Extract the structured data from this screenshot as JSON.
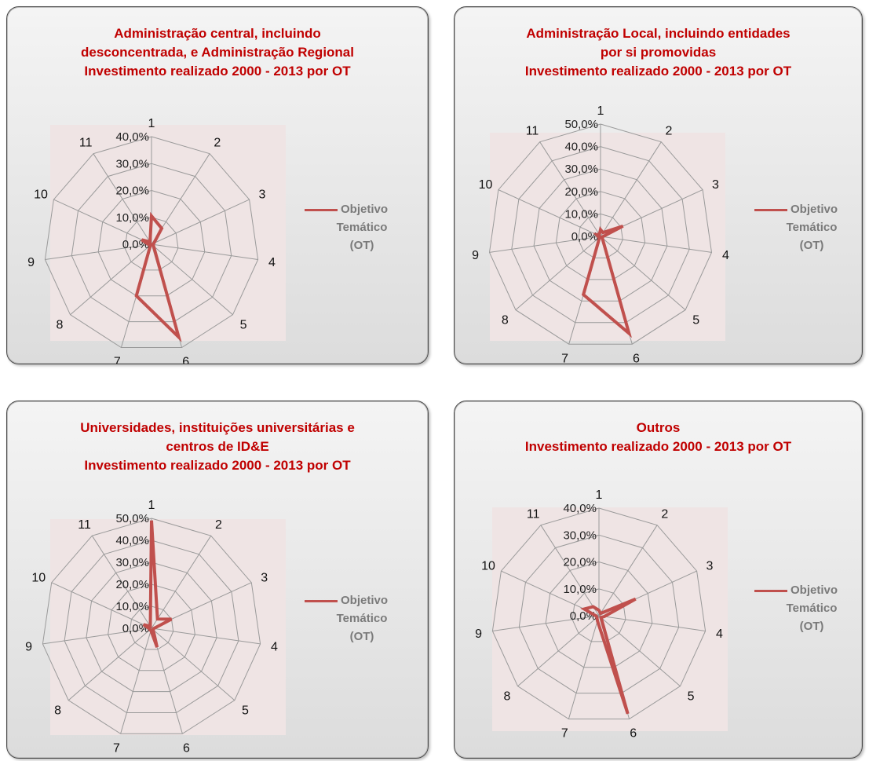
{
  "chart_data": [
    {
      "type": "radar",
      "title": [
        "Administração central, incluindo",
        "desconcentrada, e Administração Regional",
        "Investimento realizado 2000 - 2013 por OT"
      ],
      "categories": [
        "1",
        "2",
        "3",
        "4",
        "5",
        "6",
        "7",
        "8",
        "9",
        "10",
        "11"
      ],
      "axis_tick_labels": [
        "0,0%",
        "10,0%",
        "20,0%",
        "30,0%",
        "40,0%"
      ],
      "rmax": 40,
      "legend": [
        "Objetivo",
        "Temático",
        "(OT)"
      ],
      "series": [
        {
          "name": "Objetivo Temático (OT)",
          "values": [
            10.5,
            7,
            1,
            0.5,
            1,
            36,
            20,
            0.5,
            1,
            4,
            1
          ]
        }
      ]
    },
    {
      "type": "radar",
      "title": [
        "Administração Local, incluindo entidades",
        "por si promovidas",
        "Investimento realizado 2000 - 2013 por OT"
      ],
      "categories": [
        "1",
        "2",
        "3",
        "4",
        "5",
        "6",
        "7",
        "8",
        "9",
        "10",
        "11"
      ],
      "axis_tick_labels": [
        "0,0%",
        "10,0%",
        "20,0%",
        "30,0%",
        "40,0%",
        "50,0%"
      ],
      "rmax": 50,
      "legend": [
        "Objetivo",
        "Temático",
        "(OT)"
      ],
      "series": [
        {
          "name": "Objetivo Temático (OT)",
          "values": [
            3,
            2,
            11,
            1,
            1,
            45,
            27,
            0.5,
            1,
            2,
            1
          ]
        }
      ]
    },
    {
      "type": "radar",
      "title": [
        "Universidades, instituições universitárias e",
        "centros de ID&E",
        "Investimento realizado 2000 - 2013 por OT"
      ],
      "categories": [
        "1",
        "2",
        "3",
        "4",
        "5",
        "6",
        "7",
        "8",
        "9",
        "10",
        "11"
      ],
      "axis_tick_labels": [
        "0,0%",
        "10,0%",
        "20,0%",
        "30,0%",
        "40,0%",
        "50,0%"
      ],
      "rmax": 50,
      "legend": [
        "Objetivo",
        "Temático",
        "(OT)"
      ],
      "series": [
        {
          "name": "Objetivo Temático (OT)",
          "values": [
            49,
            5,
            10,
            1,
            1,
            9,
            1,
            1,
            1,
            4,
            1
          ]
        }
      ]
    },
    {
      "type": "radar",
      "title": [
        "Outros",
        "Investimento realizado 2000 - 2013 por OT"
      ],
      "categories": [
        "1",
        "2",
        "3",
        "4",
        "5",
        "6",
        "7",
        "8",
        "9",
        "10",
        "11"
      ],
      "axis_tick_labels": [
        "0,0%",
        "10,0%",
        "20,0%",
        "30,0%",
        "40,0%"
      ],
      "rmax": 40,
      "legend": [
        "Objetivo",
        "Temático",
        "(OT)"
      ],
      "series": [
        {
          "name": "Objetivo Temático (OT)",
          "values": [
            2,
            1,
            15,
            2,
            1,
            38,
            2,
            1,
            1,
            6,
            4
          ]
        }
      ]
    }
  ]
}
